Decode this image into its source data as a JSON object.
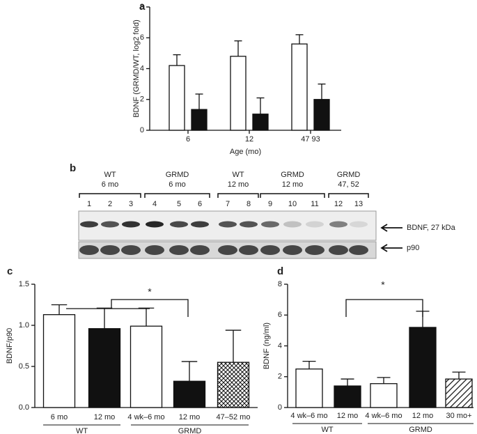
{
  "chart_data": [
    {
      "type": "bar",
      "panel": "a",
      "y_label": "BDNF (GRMD/WT, log2 fold)",
      "x_label": "Age (mo)",
      "categories": [
        "6",
        "12",
        "47 93"
      ],
      "series": [
        {
          "color": "#ffffff",
          "values": [
            4.2,
            4.8,
            5.6
          ],
          "errors": [
            0.7,
            1.0,
            0.6
          ]
        },
        {
          "color": "#111111",
          "values": [
            1.35,
            1.05,
            2.0
          ],
          "errors": [
            1.0,
            1.05,
            1.0
          ]
        }
      ],
      "ylim": [
        0,
        8
      ],
      "yticks": [
        0,
        2,
        4,
        6,
        8
      ]
    },
    {
      "type": "bar",
      "panel": "c",
      "y_label": "BDNF/p90",
      "categories": [
        "6 mo",
        "12 mo",
        "4 wk–6 mo",
        "12 mo",
        "47–52 mo"
      ],
      "values": [
        1.13,
        0.96,
        0.99,
        0.32,
        0.55
      ],
      "errors": [
        0.12,
        0.25,
        0.22,
        0.24,
        0.39
      ],
      "fills": [
        "white",
        "black",
        "white",
        "black",
        "crosshatch"
      ],
      "group_labels": [
        "WT",
        "GRMD"
      ],
      "annotation": "*",
      "ylim": [
        0,
        1.5
      ],
      "yticks": [
        {
          "value": 0,
          "label": "0.0"
        },
        0.5,
        {
          "value": 1,
          "label": "1.0"
        },
        1.5
      ]
    },
    {
      "type": "bar",
      "panel": "d",
      "y_label": "BDNF (ng/ml)",
      "categories": [
        "4 wk–6 mo",
        "12 mo",
        "4 wk–6 mo",
        "12 mo",
        "30 mo+"
      ],
      "values": [
        2.5,
        1.4,
        1.55,
        5.2,
        1.85
      ],
      "errors": [
        0.5,
        0.45,
        0.4,
        1.05,
        0.45
      ],
      "fills": [
        "white",
        "black",
        "white",
        "black",
        "hatch"
      ],
      "group_labels": [
        "WT",
        "GRMD"
      ],
      "annotation": "*",
      "ylim": [
        0,
        8
      ],
      "yticks": [
        0,
        2,
        4,
        6,
        8
      ]
    }
  ],
  "blot": {
    "panel": "b",
    "lane_groups": [
      {
        "name": "WT",
        "age": "6 mo"
      },
      {
        "name": "GRMD",
        "age": "6 mo"
      },
      {
        "name": "WT",
        "age": "12 mo"
      },
      {
        "name": "GRMD",
        "age": "12 mo"
      },
      {
        "name": "GRMD",
        "age": "47, 52"
      }
    ],
    "lanes": [
      "1",
      "2",
      "3",
      "4",
      "5",
      "6",
      "7",
      "8",
      "9",
      "10",
      "11",
      "12",
      "13"
    ],
    "bands": [
      "BDNF, 27 kDa",
      "p90"
    ]
  }
}
